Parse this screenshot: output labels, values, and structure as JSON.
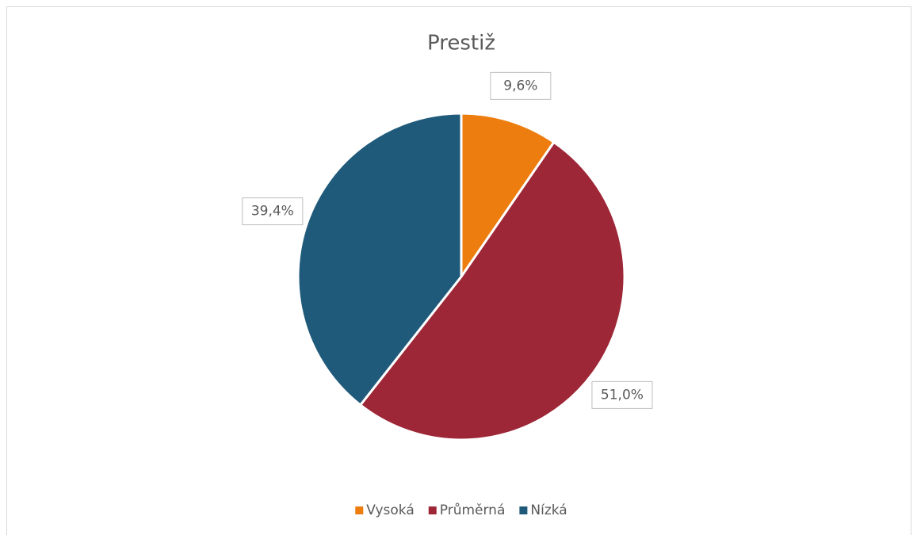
{
  "chart_data": {
    "type": "pie",
    "title": "Prestiž",
    "categories": [
      "Vysoká",
      "Průměrná",
      "Nízká"
    ],
    "values": [
      9.6,
      51.0,
      39.4
    ],
    "value_labels": [
      "9,6%",
      "51,0%",
      "39,4%"
    ],
    "colors": [
      "#ed7d0e",
      "#9e2737",
      "#1f5a7a"
    ],
    "legend": "bottom"
  }
}
